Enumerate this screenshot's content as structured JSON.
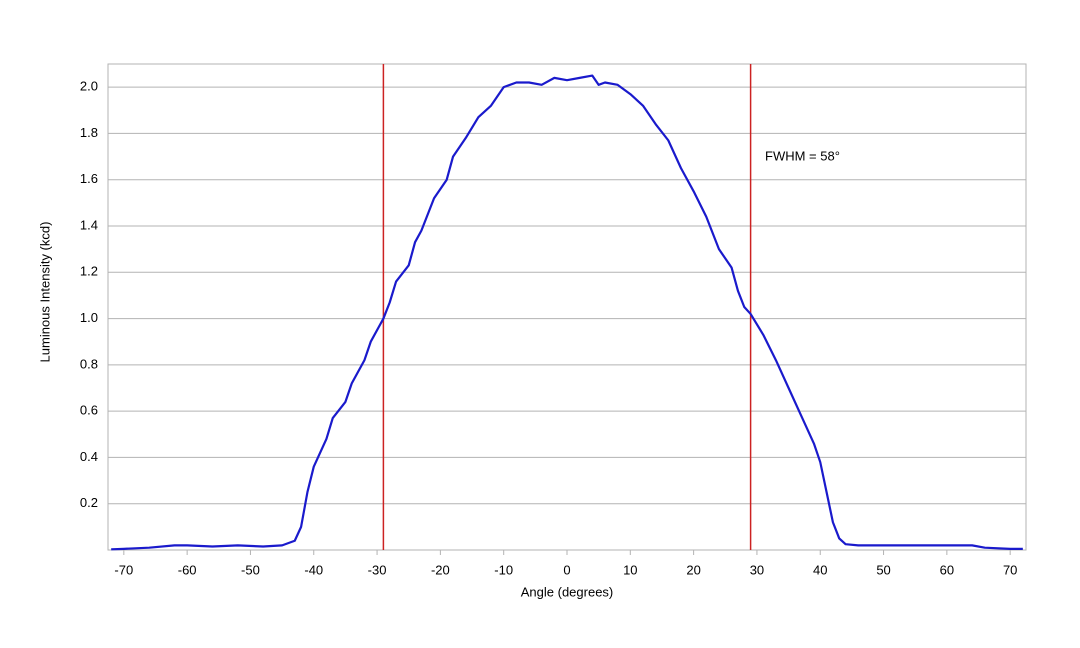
{
  "chart_data": {
    "type": "line",
    "x_label": "Angle (degrees)",
    "y_label": "Luminous Intensity (kcd)",
    "annotation": "FWHM = 58°",
    "xlim": [
      -72.5,
      72.5
    ],
    "xticks": [
      -70,
      -60,
      -50,
      -40,
      -30,
      -20,
      -10,
      0,
      10,
      20,
      30,
      40,
      50,
      60,
      70
    ],
    "ylim": [
      0,
      2.1
    ],
    "yticks": [
      0.2,
      0.4,
      0.6,
      0.8,
      {
        "value": 1,
        "label": "1.0"
      },
      1.2,
      1.4,
      1.6,
      1.8,
      {
        "value": 2,
        "label": "2.0"
      }
    ],
    "grid": true,
    "vlines": [
      -29,
      29
    ],
    "vline_color": "#cc2222",
    "x": [
      -72,
      -70,
      -66,
      -62,
      -60,
      -56,
      -52,
      -48,
      -45,
      -43,
      -42,
      -41,
      -40,
      -38,
      -37,
      -35,
      -34,
      -32,
      -31,
      -29,
      -28,
      -27,
      -25,
      -24,
      -23,
      -21,
      -19,
      -18,
      -16,
      -14,
      -12,
      -10,
      -8,
      -6,
      -4,
      -2,
      0,
      2,
      4,
      5,
      6,
      8,
      10,
      12,
      14,
      16,
      18,
      20,
      22,
      24,
      26,
      27,
      28,
      29,
      31,
      33,
      35,
      37,
      39,
      40,
      41,
      42,
      43,
      44,
      46,
      50,
      54,
      58,
      62,
      64,
      66,
      70,
      72
    ],
    "series": [
      {
        "name": "Luminous Intensity",
        "color": "#1a1acc",
        "values": [
          0.003,
          0.005,
          0.01,
          0.02,
          0.02,
          0.015,
          0.02,
          0.015,
          0.02,
          0.04,
          0.1,
          0.25,
          0.36,
          0.48,
          0.57,
          0.64,
          0.72,
          0.82,
          0.9,
          1.0,
          1.07,
          1.16,
          1.23,
          1.33,
          1.38,
          1.52,
          1.6,
          1.7,
          1.78,
          1.87,
          1.92,
          2.0,
          2.02,
          2.02,
          2.01,
          2.04,
          2.03,
          2.04,
          2.05,
          2.01,
          2.02,
          2.01,
          1.97,
          1.92,
          1.84,
          1.77,
          1.65,
          1.55,
          1.44,
          1.3,
          1.22,
          1.12,
          1.05,
          1.02,
          0.93,
          0.82,
          0.7,
          0.58,
          0.46,
          0.38,
          0.25,
          0.12,
          0.05,
          0.025,
          0.02,
          0.02,
          0.02,
          0.02,
          0.02,
          0.02,
          0.01,
          0.005,
          0.005
        ]
      }
    ]
  }
}
